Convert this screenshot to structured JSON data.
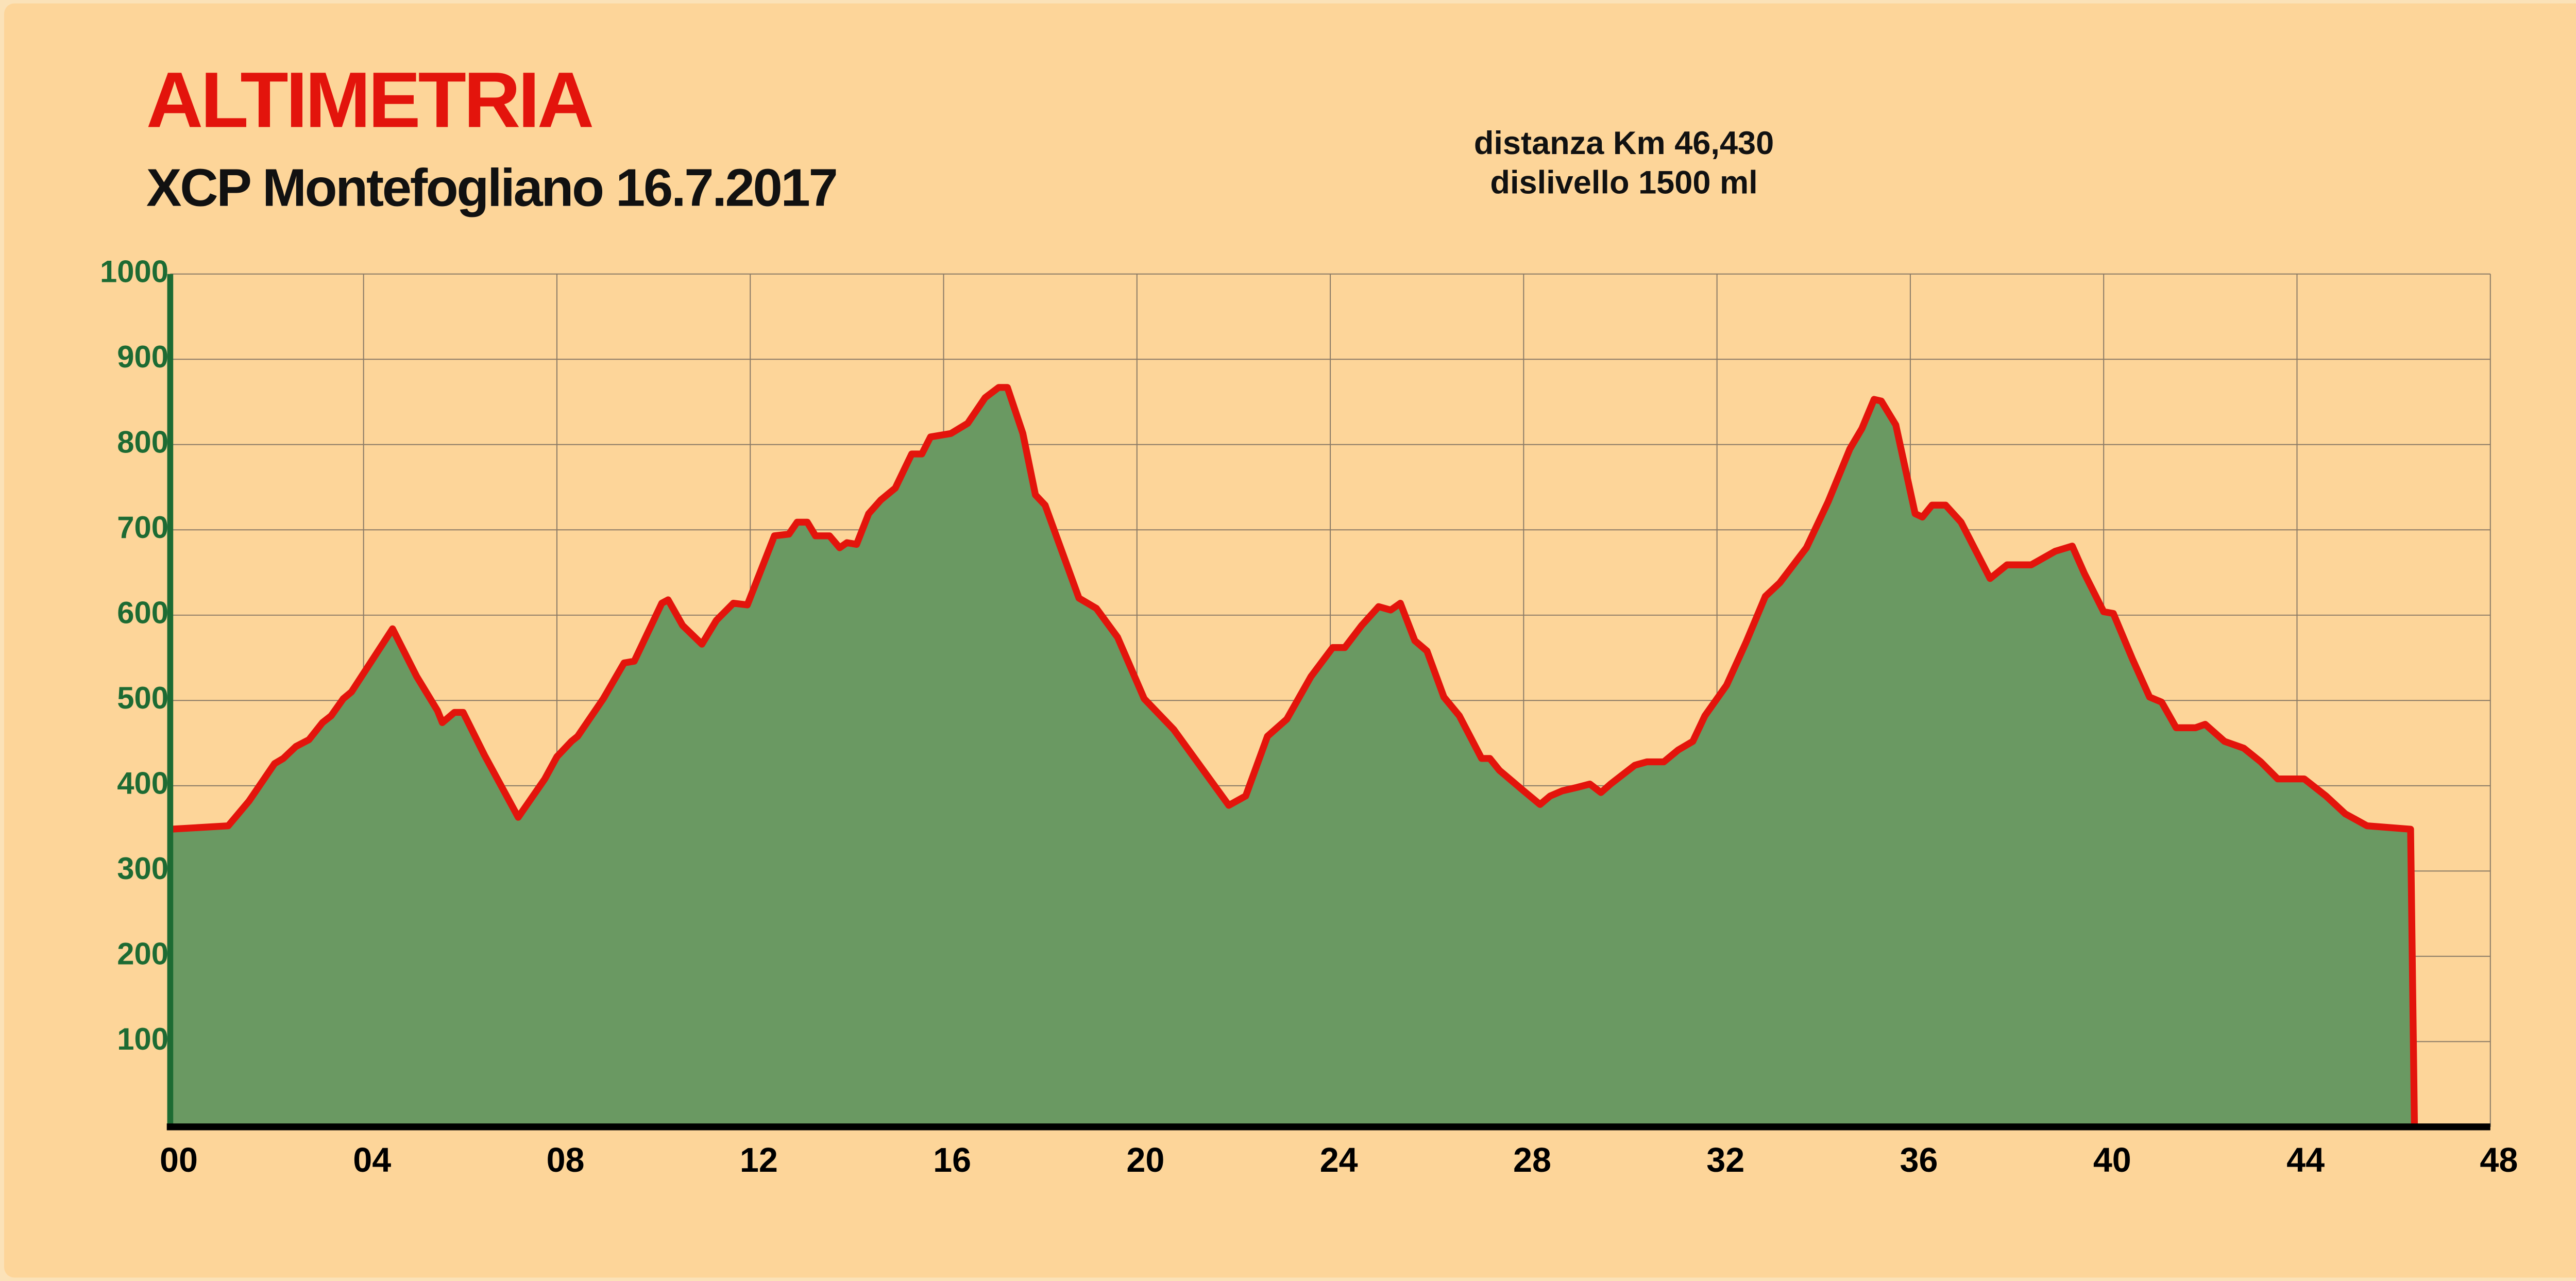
{
  "chart_data": {
    "type": "area",
    "title": "ALTIMETRIA",
    "subtitle": "XCP Montefogliano 16.7.2017",
    "annotations": [
      "distanza Km 46,430",
      "dislivello 1500 ml"
    ],
    "color": "#e3140c",
    "fill": "#6a9962",
    "grid": true,
    "xlim": [
      0,
      48
    ],
    "ylim": [
      0,
      1000
    ],
    "xticks": [
      {
        "value": 0,
        "label": "00"
      },
      {
        "value": 4,
        "label": "04"
      },
      {
        "value": 8,
        "label": "08"
      },
      12,
      16,
      20,
      24,
      28,
      32,
      36,
      40,
      44,
      48
    ],
    "yticks": [
      100,
      200,
      300,
      400,
      500,
      600,
      700,
      800,
      900,
      1000
    ],
    "x": [
      0,
      1.2,
      1.63,
      2.16,
      2.34,
      2.6,
      2.87,
      3.15,
      3.33,
      3.58,
      3.75,
      4.6,
      5.1,
      5.53,
      5.63,
      5.88,
      6.06,
      6.5,
      7.2,
      7.75,
      8.0,
      8.3,
      8.43,
      8.96,
      9.39,
      9.6,
      10.17,
      10.3,
      10.6,
      11.0,
      11.3,
      11.65,
      11.94,
      12.5,
      12.8,
      12.97,
      13.18,
      13.35,
      13.64,
      13.85,
      14.0,
      14.2,
      14.45,
      14.7,
      15.0,
      15.34,
      15.55,
      15.73,
      16.15,
      16.5,
      16.86,
      17.14,
      17.32,
      17.64,
      17.9,
      18.1,
      18.8,
      19.16,
      19.6,
      20.15,
      20.76,
      21.9,
      22.25,
      22.7,
      23.1,
      23.6,
      24.05,
      24.3,
      24.65,
      25.0,
      25.25,
      25.45,
      25.75,
      26.0,
      26.35,
      26.67,
      27.13,
      27.3,
      27.5,
      28.0,
      28.34,
      28.55,
      28.8,
      29.1,
      29.37,
      29.6,
      29.8,
      30.3,
      30.55,
      30.9,
      31.2,
      31.5,
      31.75,
      32.2,
      32.6,
      33.0,
      33.3,
      33.85,
      34.3,
      34.75,
      35.0,
      35.25,
      35.4,
      35.7,
      36.1,
      36.25,
      36.45,
      36.73,
      37.05,
      37.65,
      38.0,
      38.5,
      39.0,
      39.35,
      39.6,
      40.0,
      40.2,
      40.6,
      40.95,
      41.2,
      41.5,
      41.9,
      42.1,
      42.5,
      42.9,
      43.25,
      43.6,
      44.15,
      44.6,
      45.0,
      45.45,
      46.35,
      46.43
    ],
    "values": [
      349,
      353,
      382,
      426,
      432,
      446,
      454,
      474,
      482,
      502,
      510,
      584,
      528,
      488,
      474,
      486,
      486,
      436,
      363,
      408,
      434,
      452,
      458,
      502,
      544,
      546,
      614,
      618,
      588,
      566,
      594,
      614,
      612,
      693,
      695,
      709,
      709,
      693,
      693,
      679,
      685,
      683,
      719,
      735,
      749,
      789,
      789,
      809,
      813,
      825,
      855,
      867,
      867,
      813,
      741,
      729,
      620,
      608,
      574,
      502,
      466,
      377,
      388,
      458,
      478,
      528,
      562,
      562,
      588,
      610,
      606,
      614,
      570,
      558,
      504,
      482,
      432,
      432,
      418,
      394,
      378,
      388,
      394,
      398,
      402,
      392,
      402,
      424,
      428,
      428,
      442,
      452,
      482,
      518,
      568,
      622,
      638,
      679,
      733,
      795,
      819,
      853,
      851,
      823,
      719,
      715,
      729,
      729,
      709,
      643,
      659,
      659,
      675,
      681,
      649,
      604,
      602,
      548,
      504,
      498,
      468,
      468,
      472,
      452,
      444,
      428,
      408,
      408,
      388,
      367,
      353,
      349,
      0
    ]
  }
}
